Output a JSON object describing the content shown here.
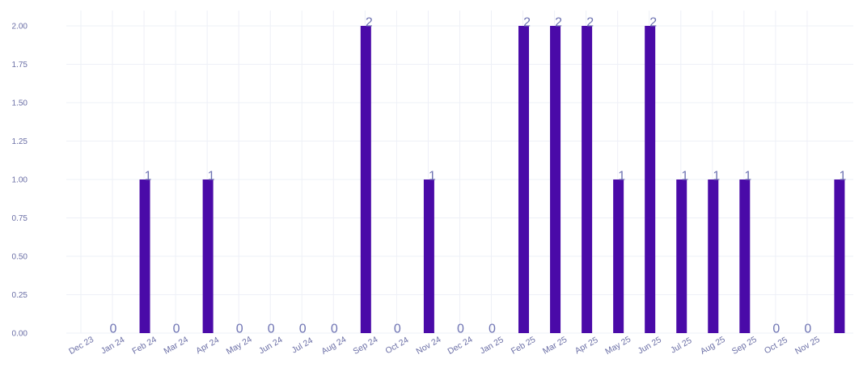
{
  "chart_data": {
    "type": "bar",
    "title": "",
    "xlabel": "",
    "ylabel": "",
    "categories": [
      "Dec 23",
      "Jan 24",
      "Feb 24",
      "Mar 24",
      "Apr 24",
      "May 24",
      "Jun 24",
      "Jul 24",
      "Aug 24",
      "Sep 24",
      "Oct 24",
      "Nov 24",
      "Dec 24",
      "Jan 25",
      "Feb 25",
      "Mar 25",
      "Apr 25",
      "May 25",
      "Jun 25",
      "Jul 25",
      "Aug 25",
      "Sep 25",
      "Oct 25",
      "Nov 25"
    ],
    "values": [
      0,
      1,
      0,
      1,
      0,
      0,
      0,
      0,
      2,
      0,
      1,
      0,
      0,
      2,
      2,
      2,
      1,
      2,
      1,
      1,
      1,
      0,
      0,
      1
    ],
    "ylim": [
      0,
      2.1
    ],
    "yticks": [
      "0.00",
      "0.25",
      "0.50",
      "0.75",
      "1.00",
      "1.25",
      "1.50",
      "1.75",
      "2.00"
    ],
    "grid": true,
    "legend": "none",
    "data_labels": true,
    "colors": {
      "bar": "#4a0aa8",
      "tick_text": "#6b6fa6",
      "value_label": "#6f74b3",
      "grid": "#eef0f7"
    }
  }
}
